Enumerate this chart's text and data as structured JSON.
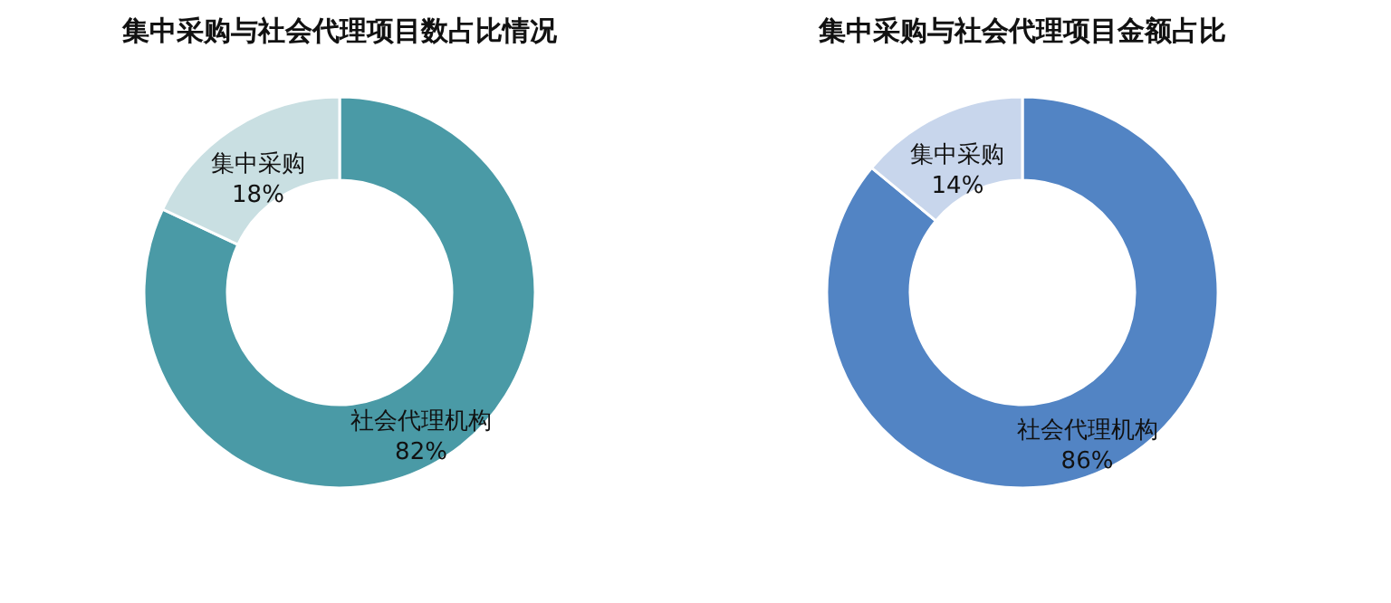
{
  "chart_data": [
    {
      "type": "donut",
      "title": "集中采购与社会代理项目数占比情况",
      "categories": [
        "社会代理机构",
        "集中采购"
      ],
      "values": [
        82,
        18
      ],
      "colors": [
        "#4a9aa6",
        "#c9dfe2"
      ],
      "value_labels": [
        "82%",
        "18%"
      ],
      "legend": false
    },
    {
      "type": "donut",
      "title": "集中采购与社会代理项目金额占比",
      "categories": [
        "社会代理机构",
        "集中采购"
      ],
      "values": [
        86,
        14
      ],
      "colors": [
        "#5284c4",
        "#c8d6ec"
      ],
      "value_labels": [
        "86%",
        "14%"
      ],
      "legend": false
    }
  ]
}
